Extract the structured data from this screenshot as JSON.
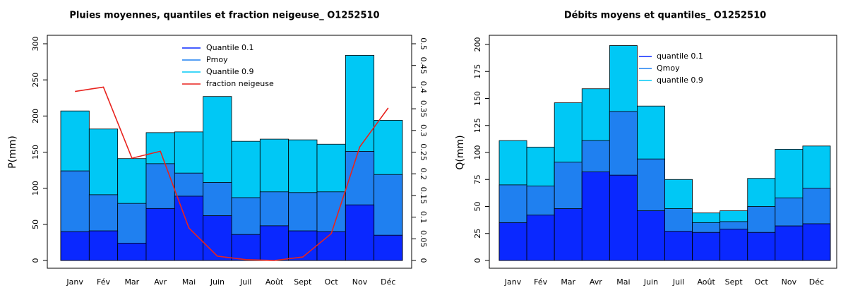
{
  "chart_data": [
    {
      "type": "bar",
      "title": "Pluies moyennes, quantiles et fraction neigeuse_ O1252510",
      "y_label": "P(mm)",
      "categories": [
        "Janv",
        "Fév",
        "Mar",
        "Avr",
        "Mai",
        "Juin",
        "Juil",
        "Août",
        "Sept",
        "Oct",
        "Nov",
        "Déc"
      ],
      "series": [
        {
          "name": "Quantile 0.1",
          "color": "#0a28ff",
          "values": [
            40,
            41,
            24,
            72,
            89,
            62,
            36,
            48,
            41,
            40,
            77,
            35
          ]
        },
        {
          "name": "Pmoy",
          "color": "#1f80f0",
          "values": [
            124,
            91,
            79,
            134,
            121,
            108,
            87,
            95,
            94,
            95,
            151,
            119
          ]
        },
        {
          "name": "Quantile 0.9",
          "color": "#00c8f5",
          "values": [
            207,
            182,
            141,
            177,
            178,
            227,
            165,
            168,
            167,
            161,
            284,
            194
          ]
        },
        {
          "name": "fraction neigeuse",
          "color": "#e8231e",
          "axis": "y2",
          "type": "line",
          "values": [
            0.39,
            0.4,
            0.236,
            0.252,
            0.075,
            0.01,
            0.002,
            0,
            0.008,
            0.062,
            0.262,
            0.352
          ]
        }
      ],
      "ylim": [
        0,
        300
      ],
      "yticks": [
        0,
        50,
        100,
        150,
        200,
        250,
        300
      ],
      "y2lim": [
        0,
        0.5
      ],
      "y2ticks": [
        0,
        0.05,
        0.1,
        0.15,
        0.2,
        0.25,
        0.3,
        0.35,
        0.4,
        0.45,
        0.5
      ]
    },
    {
      "type": "bar",
      "title": "Débits moyens et quantiles_ O1252510",
      "y_label": "Q(mm)",
      "categories": [
        "Janv",
        "Fév",
        "Mar",
        "Avr",
        "Mai",
        "Juin",
        "Juil",
        "Août",
        "Sept",
        "Oct",
        "Nov",
        "Déc"
      ],
      "series": [
        {
          "name": "quantile 0.1",
          "color": "#0a28ff",
          "values": [
            35,
            42,
            48,
            82,
            79,
            46,
            27,
            26,
            29,
            26,
            32,
            34
          ]
        },
        {
          "name": "Qmoy",
          "color": "#1f80f0",
          "values": [
            70,
            69,
            91,
            111,
            138,
            94,
            48,
            35,
            36,
            50,
            58,
            67
          ]
        },
        {
          "name": "quantile 0.9",
          "color": "#00c8f5",
          "values": [
            111,
            105,
            146,
            159,
            199,
            143,
            75,
            44,
            46,
            76,
            103,
            106
          ]
        }
      ],
      "ylim": [
        0,
        200
      ],
      "yticks": [
        0,
        25,
        50,
        75,
        100,
        125,
        150,
        175,
        200
      ]
    }
  ]
}
